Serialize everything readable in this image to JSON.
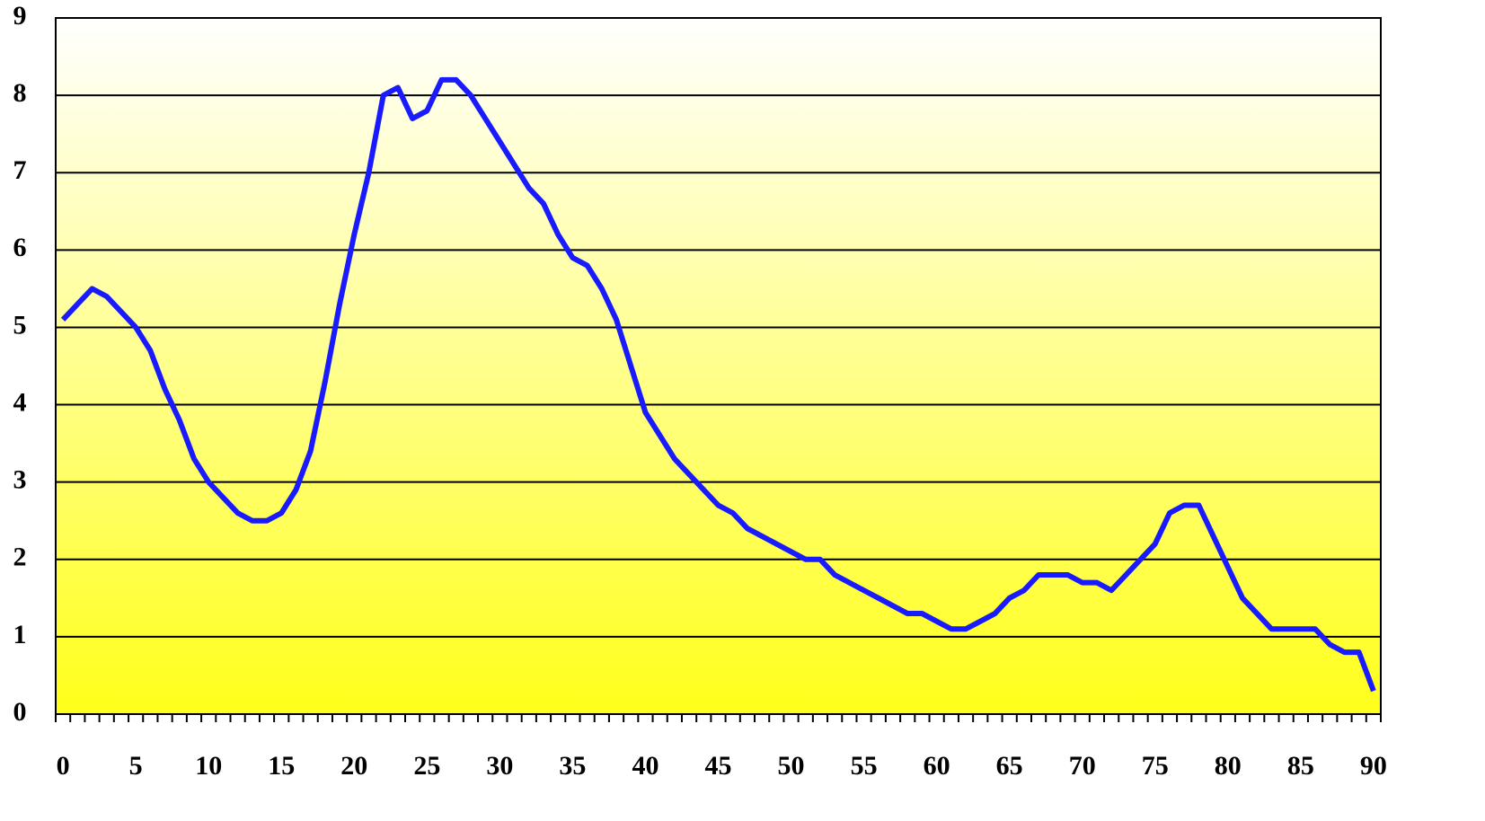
{
  "chart_data": {
    "type": "line",
    "categories": [
      "0",
      null,
      null,
      null,
      null,
      "5",
      null,
      null,
      null,
      null,
      "10",
      null,
      null,
      null,
      null,
      "15",
      null,
      null,
      null,
      null,
      "20",
      null,
      null,
      null,
      null,
      "25",
      null,
      null,
      null,
      null,
      "30",
      null,
      null,
      null,
      null,
      "35",
      null,
      null,
      null,
      null,
      "40",
      null,
      null,
      null,
      null,
      "45",
      null,
      null,
      null,
      null,
      "50",
      null,
      null,
      null,
      null,
      "55",
      null,
      null,
      null,
      null,
      "60",
      null,
      null,
      null,
      null,
      "65",
      null,
      null,
      null,
      null,
      "70",
      null,
      null,
      null,
      null,
      "75",
      null,
      null,
      null,
      null,
      "80",
      null,
      null,
      null,
      null,
      "85",
      null,
      null,
      null,
      null,
      "90"
    ],
    "values": [
      5.1,
      5.3,
      5.5,
      5.4,
      5.2,
      5.0,
      4.7,
      4.2,
      3.8,
      3.3,
      3.0,
      2.8,
      2.6,
      2.5,
      2.5,
      2.6,
      2.9,
      3.4,
      4.3,
      5.3,
      6.2,
      7.0,
      8.0,
      8.1,
      7.7,
      7.8,
      8.2,
      8.2,
      8.0,
      7.7,
      7.4,
      7.1,
      6.8,
      6.6,
      6.2,
      5.9,
      5.8,
      5.5,
      5.1,
      4.5,
      3.9,
      3.6,
      3.3,
      3.1,
      2.9,
      2.7,
      2.6,
      2.4,
      2.3,
      2.2,
      2.1,
      2.0,
      2.0,
      1.8,
      1.7,
      1.6,
      1.5,
      1.4,
      1.3,
      1.3,
      1.2,
      1.1,
      1.1,
      1.2,
      1.3,
      1.5,
      1.6,
      1.8,
      1.8,
      1.8,
      1.7,
      1.7,
      1.6,
      1.8,
      2.0,
      2.2,
      2.6,
      2.7,
      2.7,
      2.3,
      1.9,
      1.5,
      1.3,
      1.1,
      1.1,
      1.1,
      1.1,
      0.9,
      0.8,
      0.8,
      0.3
    ],
    "color": "#1a1aff",
    "ylim": [
      0,
      9
    ],
    "yticks": [
      0,
      1,
      2,
      3,
      4,
      5,
      6,
      7,
      8,
      9
    ],
    "grid": true
  }
}
